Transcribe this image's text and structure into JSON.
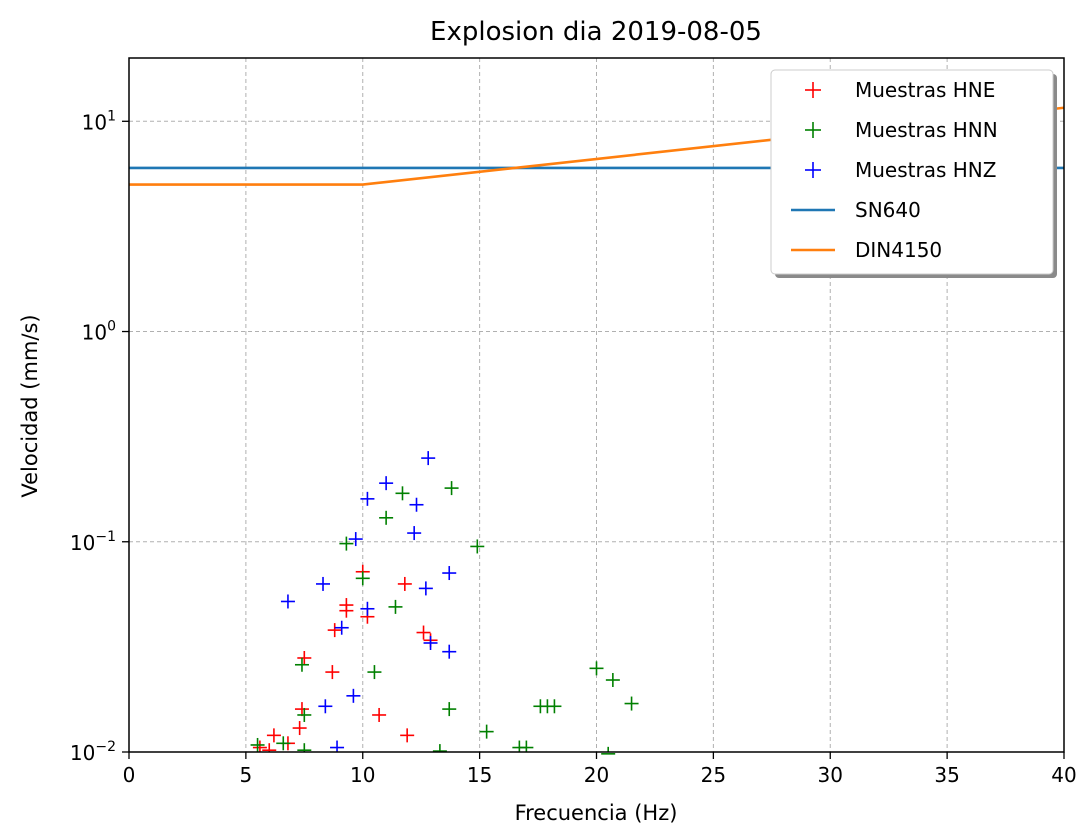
{
  "chart_data": {
    "type": "scatter",
    "title": "Explosion dia 2019-08-05",
    "xlabel": "Frecuencia (Hz)",
    "ylabel": "Velocidad (mm/s)",
    "xlim": [
      0,
      40
    ],
    "ylim": [
      0.01,
      20
    ],
    "yscale": "log",
    "grid": true,
    "legend_position": "top-right",
    "x_ticks": [
      "0",
      "5",
      "10",
      "15",
      "20",
      "25",
      "30",
      "35",
      "40"
    ],
    "y_ticks": [
      {
        "base": "10",
        "exp": "1"
      },
      {
        "base": "10",
        "exp": "0"
      },
      {
        "base": "10",
        "exp": "−1"
      },
      {
        "base": "10",
        "exp": "−2"
      }
    ],
    "series": [
      {
        "name": "Muestras HNE",
        "kind": "points",
        "marker": "+",
        "color": "#ff0000",
        "points": [
          [
            9.3,
            0.05
          ],
          [
            9.3,
            0.047
          ],
          [
            10.0,
            0.072
          ],
          [
            10.2,
            0.044
          ],
          [
            8.8,
            0.038
          ],
          [
            11.8,
            0.063
          ],
          [
            12.6,
            0.037
          ],
          [
            12.9,
            0.034
          ],
          [
            7.5,
            0.028
          ],
          [
            7.4,
            0.016
          ],
          [
            7.3,
            0.013
          ],
          [
            8.7,
            0.024
          ],
          [
            10.7,
            0.015
          ],
          [
            11.9,
            0.012
          ],
          [
            6.2,
            0.012
          ],
          [
            6.8,
            0.011
          ],
          [
            5.6,
            0.0105
          ],
          [
            6.0,
            0.0102
          ]
        ]
      },
      {
        "name": "Muestras HNN",
        "kind": "points",
        "marker": "+",
        "color": "#008000",
        "points": [
          [
            9.3,
            0.098
          ],
          [
            11.0,
            0.13
          ],
          [
            11.7,
            0.17
          ],
          [
            13.8,
            0.18
          ],
          [
            14.9,
            0.095
          ],
          [
            10.0,
            0.067
          ],
          [
            11.4,
            0.049
          ],
          [
            7.4,
            0.026
          ],
          [
            10.5,
            0.024
          ],
          [
            13.7,
            0.016
          ],
          [
            7.5,
            0.015
          ],
          [
            15.3,
            0.0125
          ],
          [
            17.6,
            0.0165
          ],
          [
            17.9,
            0.0165
          ],
          [
            18.2,
            0.0165
          ],
          [
            20.0,
            0.025
          ],
          [
            20.7,
            0.022
          ],
          [
            21.5,
            0.017
          ],
          [
            16.7,
            0.0105
          ],
          [
            17.0,
            0.0105
          ],
          [
            13.3,
            0.0101
          ],
          [
            5.5,
            0.0108
          ],
          [
            6.6,
            0.011
          ],
          [
            7.5,
            0.0102
          ],
          [
            20.5,
            0.0098
          ]
        ]
      },
      {
        "name": "Muestras HNZ",
        "kind": "points",
        "marker": "+",
        "color": "#0000ff",
        "points": [
          [
            12.8,
            0.25
          ],
          [
            11.0,
            0.19
          ],
          [
            10.2,
            0.16
          ],
          [
            12.3,
            0.15
          ],
          [
            12.2,
            0.11
          ],
          [
            9.7,
            0.103
          ],
          [
            13.7,
            0.071
          ],
          [
            8.3,
            0.063
          ],
          [
            12.7,
            0.06
          ],
          [
            6.8,
            0.052
          ],
          [
            10.2,
            0.048
          ],
          [
            9.1,
            0.039
          ],
          [
            12.9,
            0.033
          ],
          [
            13.7,
            0.03
          ],
          [
            8.4,
            0.0165
          ],
          [
            9.6,
            0.0185
          ],
          [
            8.9,
            0.0105
          ]
        ]
      },
      {
        "name": "SN640",
        "kind": "line",
        "color": "#1f77b4",
        "points": [
          [
            0,
            6
          ],
          [
            40,
            6
          ]
        ]
      },
      {
        "name": "DIN4150",
        "kind": "line",
        "color": "#ff7f0e",
        "points": [
          [
            0,
            5
          ],
          [
            10,
            5
          ],
          [
            40,
            11.6
          ]
        ]
      }
    ]
  }
}
